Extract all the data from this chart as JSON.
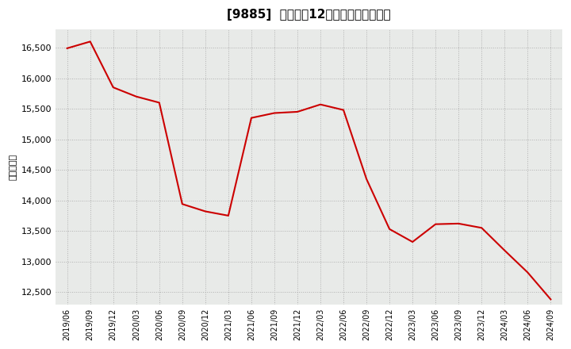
{
  "title": "[9885]  売上高の12か月移動合計の推移",
  "ylabel": "（百万円）",
  "line_color": "#cc0000",
  "bg_color": "#ffffff",
  "plot_bg_color": "#e8eae8",
  "grid_color": "#b0b0b0",
  "ylim": [
    12300,
    16800
  ],
  "yticks": [
    12500,
    13000,
    13500,
    14000,
    14500,
    15000,
    15500,
    16000,
    16500
  ],
  "dates": [
    "2019/06",
    "2019/09",
    "2019/12",
    "2020/03",
    "2020/06",
    "2020/09",
    "2020/12",
    "2021/03",
    "2021/06",
    "2021/09",
    "2021/12",
    "2022/03",
    "2022/06",
    "2022/09",
    "2022/12",
    "2023/03",
    "2023/06",
    "2023/09",
    "2023/12",
    "2024/03",
    "2024/06",
    "2024/09"
  ],
  "values": [
    16490,
    16600,
    15850,
    15700,
    15600,
    13940,
    13820,
    13750,
    15350,
    15430,
    15450,
    15570,
    15480,
    14350,
    13530,
    13320,
    13610,
    13620,
    13550,
    13180,
    12820,
    12380
  ],
  "title_fontsize": 11,
  "tick_fontsize": 8,
  "ylabel_fontsize": 8
}
